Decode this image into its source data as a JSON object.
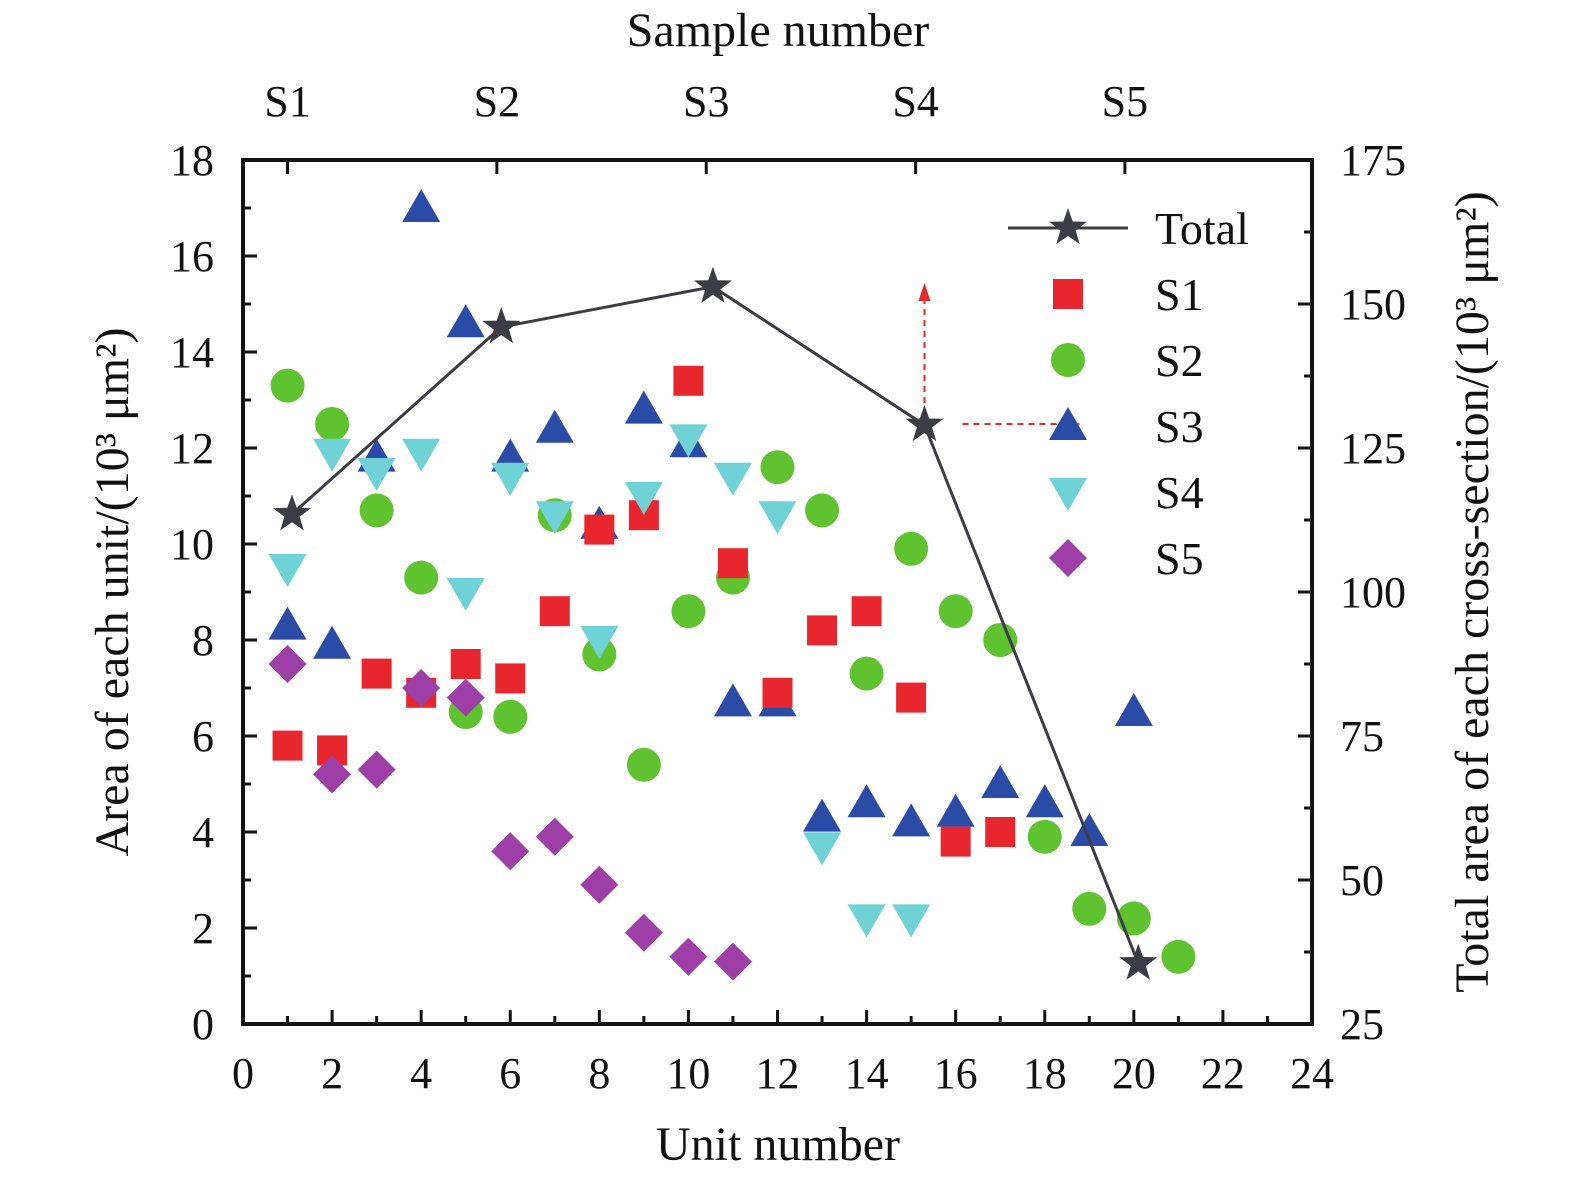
{
  "chart_data": {
    "type": "scatter",
    "xlabel": "Unit number",
    "ylabel": "Area of each unit/(10³ μm²)",
    "y2label": "Total area of each cross-section/(10³ μm²)",
    "x2label": "Sample number",
    "xlim": [
      0,
      24
    ],
    "ylim": [
      0,
      18
    ],
    "y2lim": [
      25,
      175
    ],
    "xticks": [
      "0",
      "2",
      "4",
      "6",
      "8",
      "10",
      "12",
      "14",
      "16",
      "18",
      "20",
      "22",
      "24"
    ],
    "yticks": [
      "0",
      "2",
      "4",
      "6",
      "8",
      "10",
      "12",
      "14",
      "16",
      "18"
    ],
    "y2ticks": [
      "25",
      "50",
      "75",
      "100",
      "125",
      "150",
      "175"
    ],
    "x2ticks": [
      {
        "label": "S1",
        "x": 1
      },
      {
        "label": "S2",
        "x": 5.7
      },
      {
        "label": "S3",
        "x": 10.4
      },
      {
        "label": "S4",
        "x": 15.1
      },
      {
        "label": "S5",
        "x": 19.8
      }
    ],
    "legend": "top-right",
    "series": [
      {
        "name": "Total",
        "marker": "star",
        "color": "#3c3c44",
        "axis": "right",
        "points": [
          [
            1.1,
            113.5
          ],
          [
            5.8,
            146
          ],
          [
            10.55,
            153
          ],
          [
            15.3,
            129
          ],
          [
            20.1,
            35.5
          ]
        ]
      },
      {
        "name": "S1",
        "marker": "square",
        "color": "#e8262e",
        "points": [
          [
            1,
            5.8
          ],
          [
            2,
            5.7
          ],
          [
            3,
            7.3
          ],
          [
            4,
            6.9
          ],
          [
            5,
            7.5
          ],
          [
            6,
            7.2
          ],
          [
            7,
            8.6
          ],
          [
            8,
            10.3
          ],
          [
            9,
            10.6
          ],
          [
            10,
            13.4
          ],
          [
            11,
            9.6
          ],
          [
            12,
            6.9
          ],
          [
            13,
            8.2
          ],
          [
            14,
            8.6
          ],
          [
            15,
            6.8
          ],
          [
            16,
            3.8
          ],
          [
            17,
            4.0
          ]
        ]
      },
      {
        "name": "S2",
        "marker": "circle",
        "color": "#5fc32f",
        "points": [
          [
            1,
            13.3
          ],
          [
            2,
            12.5
          ],
          [
            3,
            10.7
          ],
          [
            4,
            9.3
          ],
          [
            5,
            6.5
          ],
          [
            6,
            6.4
          ],
          [
            7,
            10.6
          ],
          [
            8,
            7.7
          ],
          [
            9,
            5.4
          ],
          [
            10,
            8.6
          ],
          [
            11,
            9.3
          ],
          [
            12,
            11.6
          ],
          [
            13,
            10.7
          ],
          [
            14,
            7.3
          ],
          [
            15,
            9.9
          ],
          [
            16,
            8.6
          ],
          [
            17,
            8.0
          ],
          [
            18,
            3.9
          ],
          [
            19,
            2.4
          ],
          [
            20,
            2.2
          ],
          [
            21,
            1.4
          ]
        ]
      },
      {
        "name": "S3",
        "marker": "triangle-up",
        "color": "#2a4ca6",
        "points": [
          [
            1,
            8.3
          ],
          [
            2,
            7.9
          ],
          [
            3,
            11.8
          ],
          [
            4,
            17.0
          ],
          [
            5,
            14.6
          ],
          [
            6,
            11.8
          ],
          [
            7,
            12.4
          ],
          [
            8,
            10.4
          ],
          [
            9,
            12.8
          ],
          [
            10,
            12.1
          ],
          [
            11,
            6.7
          ],
          [
            12,
            6.7
          ],
          [
            13,
            4.3
          ],
          [
            14,
            4.6
          ],
          [
            15,
            4.2
          ],
          [
            16,
            4.4
          ],
          [
            17,
            5.0
          ],
          [
            18,
            4.6
          ],
          [
            19,
            4.0
          ],
          [
            20,
            6.5
          ]
        ]
      },
      {
        "name": "S4",
        "marker": "triangle-down",
        "color": "#6ed2d6",
        "points": [
          [
            1,
            9.5
          ],
          [
            2,
            11.9
          ],
          [
            3,
            11.5
          ],
          [
            4,
            11.9
          ],
          [
            5,
            9.0
          ],
          [
            6,
            11.4
          ],
          [
            7,
            10.6
          ],
          [
            8,
            8.0
          ],
          [
            9,
            11.0
          ],
          [
            10,
            12.2
          ],
          [
            11,
            11.4
          ],
          [
            12,
            10.6
          ],
          [
            13,
            3.7
          ],
          [
            14,
            2.2
          ],
          [
            15,
            2.2
          ]
        ]
      },
      {
        "name": "S5",
        "marker": "diamond",
        "color": "#9e3fa8",
        "points": [
          [
            1,
            7.5
          ],
          [
            2,
            5.2
          ],
          [
            3,
            5.3
          ],
          [
            4,
            7.0
          ],
          [
            5,
            6.8
          ],
          [
            6,
            3.6
          ],
          [
            7,
            3.9
          ],
          [
            8,
            2.9
          ],
          [
            9,
            1.9
          ],
          [
            10,
            1.4
          ],
          [
            11,
            1.3
          ]
        ]
      }
    ],
    "annotations": [
      {
        "type": "dashed-arrow",
        "direction": "up",
        "color": "#e8262e"
      },
      {
        "type": "dashed-arrow",
        "direction": "right",
        "color": "#e8262e"
      }
    ]
  }
}
